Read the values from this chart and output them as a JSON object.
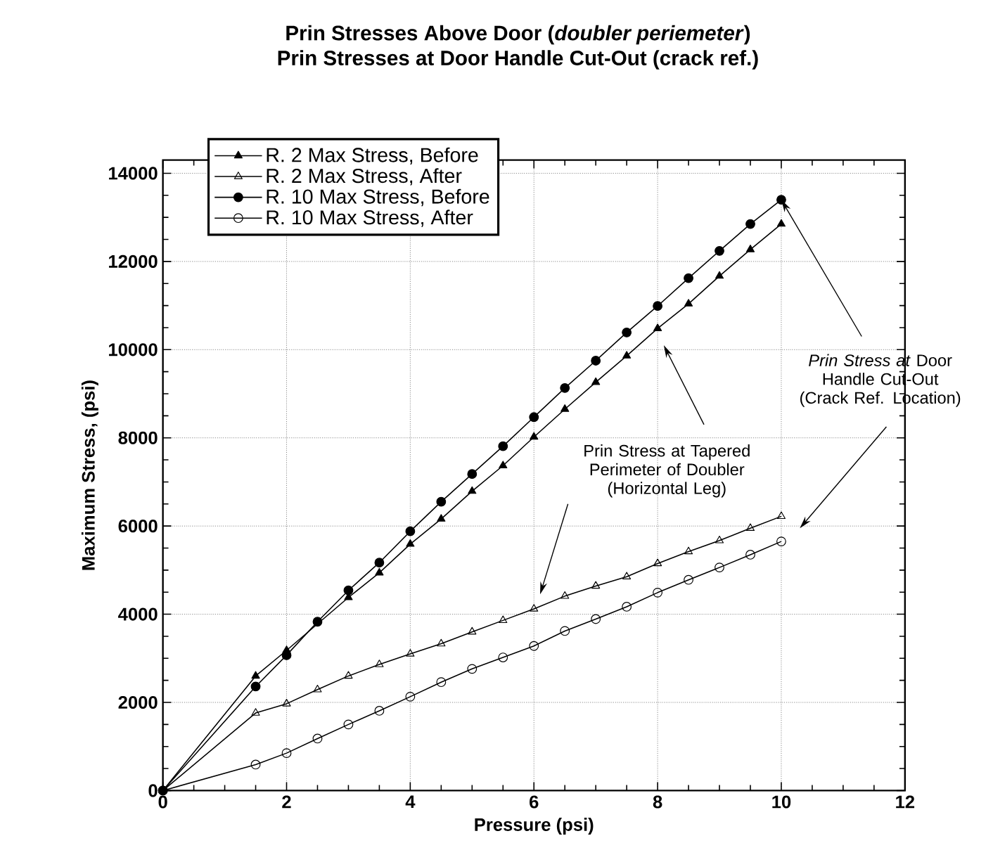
{
  "chart_data": {
    "type": "line",
    "title": "Prin Stresses Above Door (*doubler periemeter*)",
    "subtitle": "Prin Stresses at Door Handle Cut-Out (crack ref.)",
    "xlabel": "Pressure  (psi)",
    "ylabel": "Maximum  Stress,  (psi)",
    "x": [
      0,
      1.5,
      2,
      2.5,
      3,
      3.5,
      4,
      4.5,
      5,
      5.5,
      6,
      6.5,
      7,
      7.5,
      8,
      8.5,
      9,
      9.5,
      10
    ],
    "series": [
      {
        "name": "R. 2 Max Stress, Before",
        "color": "#000000",
        "marker": "triangle",
        "values": [
          0,
          2600,
          3180,
          null,
          4380,
          4940,
          5590,
          6160,
          6790,
          7370,
          8020,
          8650,
          9260,
          9860,
          10480,
          11040,
          11670,
          12270,
          12850
        ]
      },
      {
        "name": "R. 2 Max Stress, After",
        "color": "#000000",
        "marker": "triangle",
        "values": [
          0,
          1760,
          1970,
          2290,
          2600,
          2860,
          3100,
          3330,
          3600,
          3860,
          4120,
          4410,
          4640,
          4850,
          5150,
          5420,
          5670,
          5950,
          6220
        ]
      },
      {
        "name": "R. 10 Max Stress, Before",
        "color": "#000000",
        "marker": "circle",
        "values": [
          0,
          2360,
          3070,
          3830,
          4540,
          5170,
          5880,
          6550,
          7180,
          7810,
          8470,
          9130,
          9750,
          10390,
          10990,
          11620,
          12240,
          12850,
          13400
        ]
      },
      {
        "name": "R. 10 Max Stress, After",
        "color": "#000000",
        "marker": "circle",
        "values": [
          0,
          590,
          850,
          1180,
          1500,
          1810,
          2130,
          2460,
          2760,
          3020,
          3280,
          3620,
          3890,
          4170,
          4490,
          4780,
          5060,
          5350,
          5650
        ]
      }
    ],
    "xlim": [
      0,
      12
    ],
    "ylim": [
      0,
      14300
    ],
    "xticks": [
      0,
      2,
      4,
      6,
      8,
      10,
      12
    ],
    "yticks": [
      0,
      2000,
      4000,
      6000,
      8000,
      10000,
      12000,
      14000
    ],
    "grid": true,
    "legend": "top left",
    "line_style": "solid",
    "annotations": [
      "Prin Stress at Tapered Perimeter of Doubler (Horizontal Leg)",
      {
        "text": "*Prin Stress at* Door Handle Cut-Out (Crack Ref. Location)",
        "x": 10,
        "y": 13400
      }
    ]
  }
}
